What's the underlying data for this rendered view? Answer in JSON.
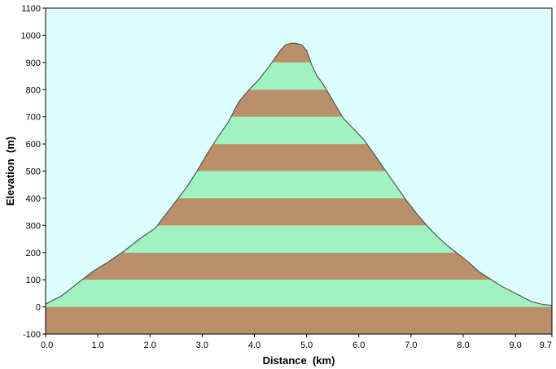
{
  "chart_data": {
    "type": "area",
    "title": "",
    "xlabel": "Distance  (km)",
    "ylabel": "Elevation  (m)",
    "xlim": [
      0,
      9.7
    ],
    "ylim": [
      -100,
      1100
    ],
    "grid": false,
    "x_ticks": [
      "0.0",
      "1.0",
      "2.0",
      "3.0",
      "4.0",
      "5.0",
      "6.0",
      "7.0",
      "8.0",
      "9.0",
      "9.7"
    ],
    "x_tick_values": [
      0,
      1,
      2,
      3,
      4,
      5,
      6,
      7,
      8,
      9,
      9.7
    ],
    "y_ticks": [
      "-100",
      "0",
      "100",
      "200",
      "300",
      "400",
      "500",
      "600",
      "700",
      "800",
      "900",
      "1000",
      "1100"
    ],
    "y_tick_values": [
      -100,
      0,
      100,
      200,
      300,
      400,
      500,
      600,
      700,
      800,
      900,
      1000,
      1100
    ],
    "band_step": 100,
    "x": [
      0.0,
      0.3,
      0.6,
      0.9,
      1.2,
      1.5,
      1.8,
      2.1,
      2.3,
      2.5,
      2.7,
      2.9,
      3.1,
      3.3,
      3.5,
      3.7,
      3.9,
      4.1,
      4.3,
      4.5,
      4.6,
      4.7,
      4.8,
      4.9,
      5.0,
      5.1,
      5.2,
      5.3,
      5.5,
      5.7,
      5.9,
      6.1,
      6.3,
      6.5,
      6.7,
      6.9,
      7.1,
      7.3,
      7.5,
      7.7,
      7.9,
      8.1,
      8.3,
      8.5,
      8.7,
      8.9,
      9.1,
      9.3,
      9.5,
      9.7
    ],
    "values": [
      10,
      40,
      85,
      130,
      165,
      205,
      250,
      290,
      340,
      390,
      440,
      500,
      565,
      625,
      680,
      755,
      800,
      840,
      890,
      945,
      965,
      970,
      970,
      965,
      945,
      890,
      850,
      825,
      760,
      695,
      655,
      615,
      560,
      505,
      450,
      395,
      345,
      300,
      260,
      225,
      195,
      165,
      130,
      105,
      80,
      60,
      40,
      20,
      10,
      5
    ],
    "colors": {
      "background": "#ddfdff",
      "band_dark": "#b9906a",
      "band_light": "#9ff3c0",
      "outline": "#555555",
      "frame": "#000000"
    }
  }
}
